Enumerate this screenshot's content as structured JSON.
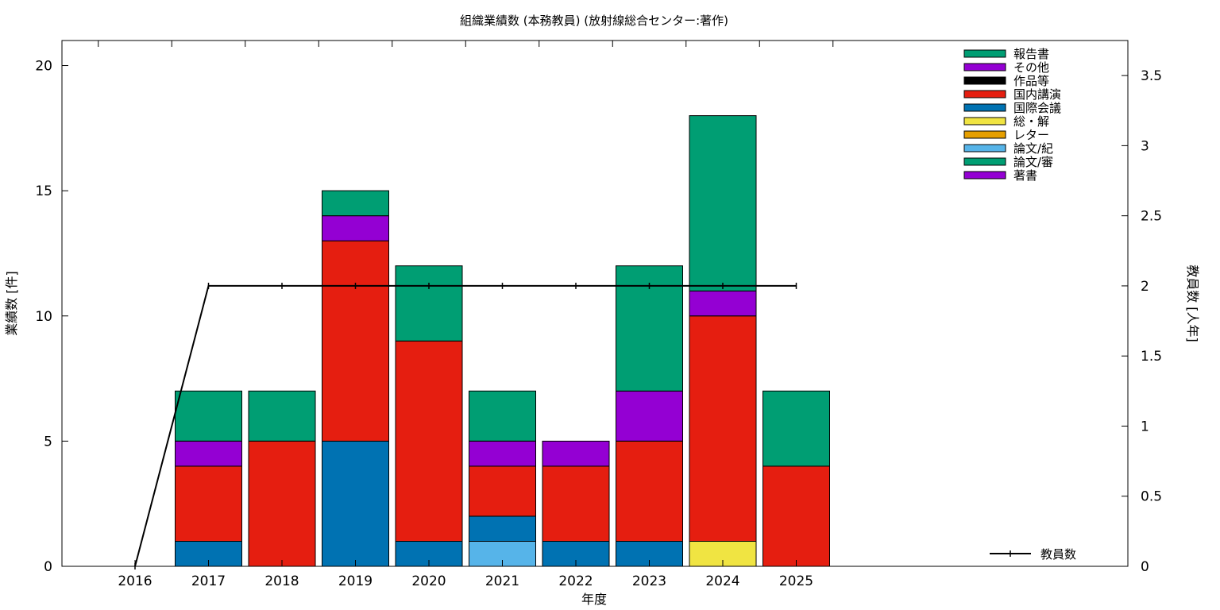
{
  "chart_data": {
    "type": "bar",
    "title": "組織業績数 (本務教員) (放射線総合センター:著作)",
    "xlabel": "年度",
    "ylabel": "業績数 [件]",
    "y2label": "教員数 [人年]",
    "categories": [
      "2016",
      "2017",
      "2018",
      "2019",
      "2020",
      "2021",
      "2022",
      "2023",
      "2024",
      "2025"
    ],
    "ylim": [
      0,
      21
    ],
    "yticks": [
      0,
      5,
      10,
      15,
      20
    ],
    "y2lim": [
      0,
      3.75
    ],
    "y2ticks": [
      0,
      0.5,
      1,
      1.5,
      2,
      2.5,
      3,
      3.5
    ],
    "y2tick_labels": [
      "0",
      "0.5",
      "1",
      "1.5",
      "2",
      "2.5",
      "3",
      "3.5"
    ],
    "stack_order": [
      "著書",
      "論文/審",
      "論文/紀",
      "レター",
      "総・解",
      "国際会議",
      "国内講演",
      "作品等",
      "その他",
      "報告書"
    ],
    "series": [
      {
        "name": "報告書",
        "color": "#009e73",
        "values": [
          0,
          2,
          2,
          1,
          3,
          2,
          0,
          5,
          7,
          3
        ]
      },
      {
        "name": "その他",
        "color": "#9400d3",
        "values": [
          0,
          1,
          0,
          1,
          0,
          1,
          1,
          2,
          1,
          0
        ]
      },
      {
        "name": "作品等",
        "color": "#000000",
        "values": [
          0,
          0,
          0,
          0,
          0,
          0,
          0,
          0,
          0,
          0
        ]
      },
      {
        "name": "国内講演",
        "color": "#e51e10",
        "values": [
          0,
          3,
          5,
          8,
          8,
          2,
          3,
          4,
          9,
          4
        ]
      },
      {
        "name": "国際会議",
        "color": "#0072b2",
        "values": [
          0,
          1,
          0,
          5,
          1,
          1,
          1,
          1,
          0,
          0
        ]
      },
      {
        "name": "総・解",
        "color": "#f0e442",
        "values": [
          0,
          0,
          0,
          0,
          0,
          0,
          0,
          0,
          1,
          0
        ]
      },
      {
        "name": "レター",
        "color": "#e69f00",
        "values": [
          0,
          0,
          0,
          0,
          0,
          0,
          0,
          0,
          0,
          0
        ]
      },
      {
        "name": "論文/紀",
        "color": "#56b4e9",
        "values": [
          0,
          0,
          0,
          0,
          0,
          1,
          0,
          0,
          0,
          0
        ]
      },
      {
        "name": "論文/審",
        "color": "#009e73",
        "values": [
          0,
          0,
          0,
          0,
          0,
          0,
          0,
          0,
          0,
          0
        ]
      },
      {
        "name": "著書",
        "color": "#9400d3",
        "values": [
          0,
          0,
          0,
          0,
          0,
          0,
          0,
          0,
          0,
          0
        ]
      }
    ],
    "line_series": {
      "name": "教員数",
      "color": "#000000",
      "axis": "y2",
      "values": [
        0,
        2,
        2,
        2,
        2,
        2,
        2,
        2,
        2,
        2
      ]
    },
    "legend_position": "top-right",
    "line_legend_position": "bottom-right",
    "grid": false
  }
}
